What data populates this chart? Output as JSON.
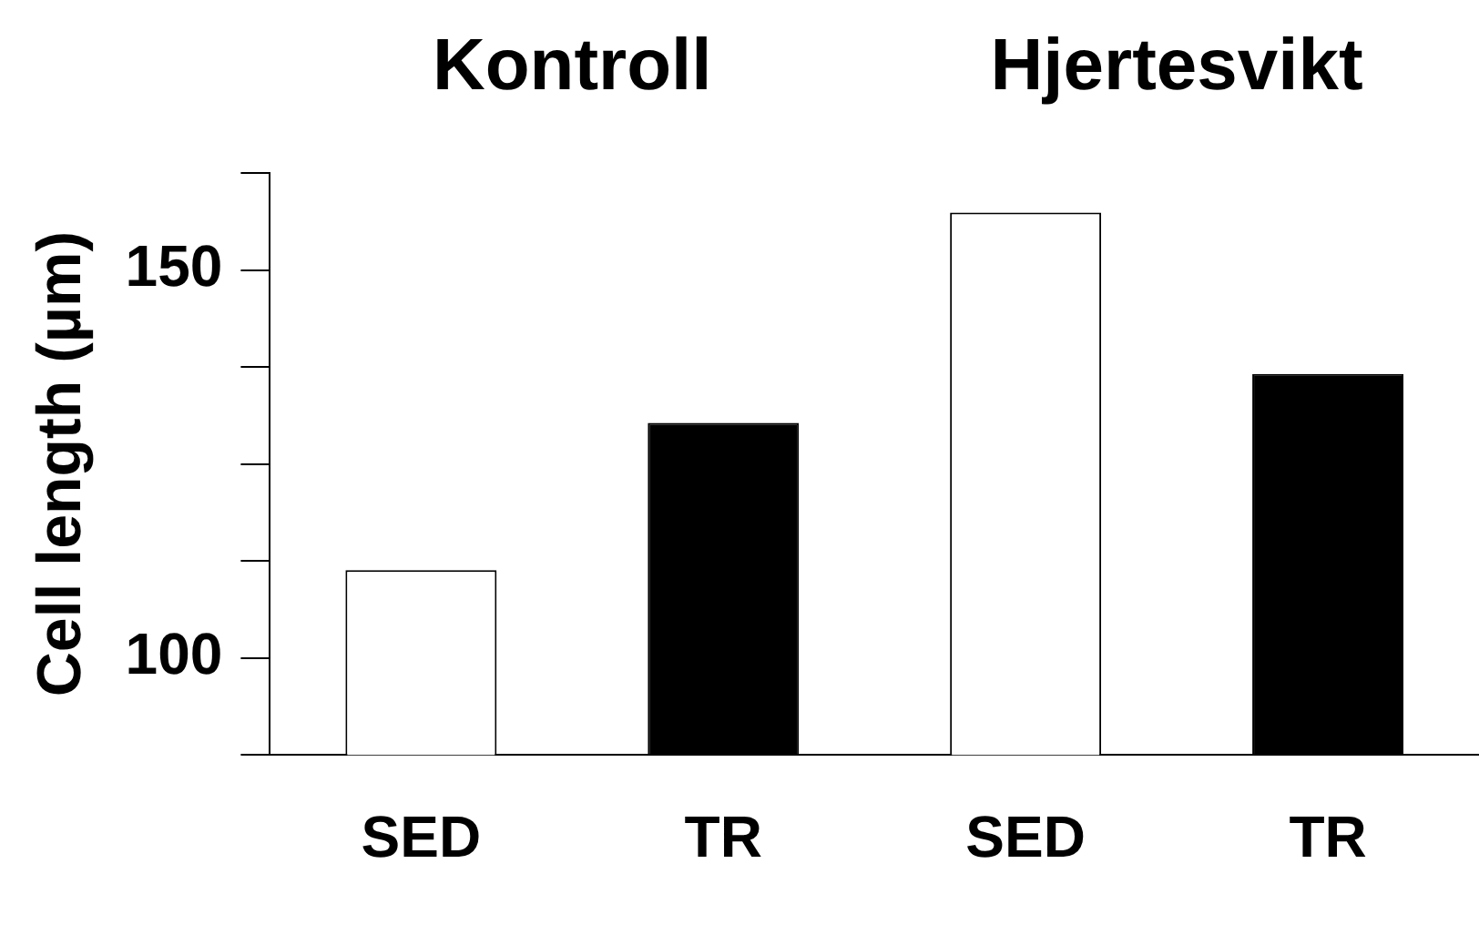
{
  "chart_data": {
    "type": "bar",
    "ylabel": "Cell length (µm)",
    "categories": [
      "SED",
      "TR",
      "SED",
      "TR"
    ],
    "values": [
      111.3,
      130.3,
      157.4,
      136.6
    ],
    "colors": [
      "#ffffff",
      "#000000",
      "#ffffff",
      "#000000"
    ],
    "annotations": [
      "Kontroll",
      "Hjertesvikt"
    ],
    "ylim": [
      87.5,
      162.5
    ],
    "yticks": [
      {
        "value": 87.5,
        "label": null
      },
      100,
      {
        "value": 112.5,
        "label": null
      },
      {
        "value": 125,
        "label": null
      },
      {
        "value": 137.5,
        "label": null
      },
      150,
      {
        "value": 162.5,
        "label": null
      }
    ],
    "grid": false,
    "legend": false
  }
}
